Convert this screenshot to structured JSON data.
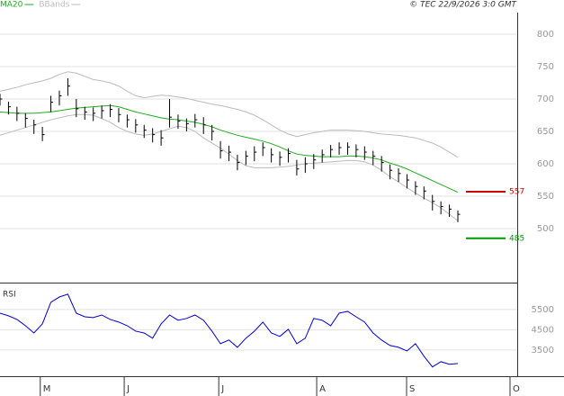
{
  "chart_data": [
    {
      "type": "ohlc",
      "source": "© TEC 22/9/2026 3:0 GMT",
      "x": [
        0,
        2,
        4,
        6,
        8,
        10,
        12,
        14,
        16,
        18,
        20,
        22,
        24,
        26,
        28,
        30,
        32,
        34,
        36,
        38,
        40,
        42,
        44,
        46,
        48,
        50,
        52,
        54,
        56,
        58,
        60,
        62,
        64,
        66,
        68,
        70,
        72,
        74,
        76,
        78,
        80,
        82,
        84,
        86,
        88,
        90,
        92,
        94,
        96,
        98,
        100,
        102,
        104,
        106,
        108
      ],
      "xlim": [
        0,
        122
      ],
      "high": [
        708,
        696,
        688,
        678,
        668,
        657,
        705,
        713,
        732,
        700,
        688,
        687,
        690,
        692,
        686,
        676,
        669,
        660,
        655,
        652,
        700,
        676,
        670,
        677,
        672,
        660,
        635,
        628,
        614,
        620,
        627,
        633,
        624,
        619,
        624,
        606,
        610,
        615,
        622,
        629,
        633,
        633,
        630,
        627,
        620,
        612,
        599,
        593,
        584,
        573,
        565,
        552,
        542,
        537,
        528
      ],
      "low": [
        690,
        676,
        666,
        656,
        646,
        635,
        680,
        690,
        705,
        672,
        668,
        666,
        670,
        672,
        664,
        656,
        648,
        640,
        633,
        628,
        656,
        654,
        650,
        656,
        646,
        636,
        608,
        604,
        590,
        598,
        604,
        612,
        602,
        597,
        602,
        582,
        586,
        592,
        602,
        610,
        614,
        614,
        610,
        606,
        598,
        588,
        576,
        572,
        562,
        552,
        545,
        528,
        522,
        518,
        510
      ],
      "close": [
        700,
        688,
        678,
        670,
        660,
        645,
        695,
        705,
        720,
        685,
        680,
        678,
        682,
        684,
        676,
        668,
        660,
        652,
        645,
        640,
        672,
        666,
        662,
        668,
        660,
        650,
        620,
        618,
        602,
        612,
        618,
        625,
        614,
        610,
        616,
        592,
        600,
        606,
        614,
        622,
        625,
        626,
        622,
        618,
        612,
        602,
        590,
        585,
        575,
        565,
        558,
        542,
        534,
        530,
        522
      ],
      "bar_color": "#000000",
      "series": [
        {
          "name": "MA20",
          "color": "#22aa22",
          "values": [
            680,
            679,
            678,
            678,
            678,
            679,
            680,
            682,
            684,
            686,
            687,
            688,
            689,
            690,
            688,
            684,
            680,
            677,
            674,
            671,
            669,
            668,
            666,
            664,
            661,
            657,
            652,
            648,
            644,
            641,
            638,
            635,
            631,
            626,
            620,
            615,
            613,
            612,
            611,
            611,
            611,
            612,
            612,
            611,
            609,
            606,
            601,
            597,
            592,
            586,
            580,
            574,
            568,
            562,
            556
          ]
        },
        {
          "name": "BBands",
          "color": "#bbbbbb",
          "upper": [
            712,
            715,
            718,
            722,
            725,
            728,
            732,
            738,
            742,
            740,
            735,
            730,
            728,
            725,
            720,
            712,
            705,
            702,
            704,
            706,
            705,
            703,
            701,
            698,
            695,
            692,
            690,
            687,
            684,
            680,
            675,
            668,
            660,
            652,
            646,
            642,
            645,
            648,
            650,
            652,
            652,
            652,
            651,
            650,
            648,
            646,
            645,
            644,
            642,
            640,
            636,
            632,
            626,
            618,
            610
          ],
          "lower": [
            644,
            648,
            652,
            656,
            660,
            664,
            668,
            671,
            674,
            676,
            676,
            675,
            670,
            664,
            656,
            650,
            646,
            644,
            646,
            650,
            654,
            658,
            656,
            650,
            640,
            632,
            624,
            615,
            605,
            597,
            594,
            594,
            594,
            595,
            596,
            598,
            600,
            601,
            602,
            603,
            604,
            605,
            605,
            603,
            598,
            590,
            580,
            572,
            563,
            555,
            547,
            540,
            532,
            522,
            512
          ]
        }
      ],
      "levels": [
        {
          "value": 557,
          "color": "#cc0000"
        },
        {
          "value": 485,
          "color": "#009900"
        }
      ],
      "ylim": [
        418,
        832
      ],
      "yticks": [
        500,
        550,
        600,
        650,
        700,
        750,
        800
      ],
      "grid": true
    },
    {
      "type": "line",
      "title": "RSI",
      "color": "#0000cc",
      "values": [
        5320,
        5190,
        5010,
        4700,
        4340,
        4790,
        5860,
        6120,
        6260,
        5320,
        5140,
        5100,
        5230,
        5010,
        4880,
        4700,
        4430,
        4340,
        4080,
        4790,
        5230,
        4970,
        5060,
        5230,
        4970,
        4430,
        3810,
        3990,
        3630,
        4080,
        4430,
        4880,
        4340,
        4170,
        4520,
        3810,
        4080,
        5060,
        4970,
        4700,
        5320,
        5410,
        5140,
        4880,
        4340,
        3990,
        3720,
        3630,
        3450,
        3810,
        3190,
        2660,
        2920,
        2790,
        2830
      ],
      "ylim": [
        2200,
        6700
      ],
      "yticks": [
        5500,
        4500,
        3500
      ],
      "xticks": [
        {
          "value": 9.5,
          "label": "M"
        },
        {
          "value": 29.3,
          "label": "J"
        },
        {
          "value": 51.6,
          "label": "J"
        },
        {
          "value": 74.7,
          "label": "A"
        },
        {
          "value": 95.9,
          "label": "S"
        },
        {
          "value": 120.3,
          "label": "O"
        }
      ],
      "grid": true
    }
  ]
}
